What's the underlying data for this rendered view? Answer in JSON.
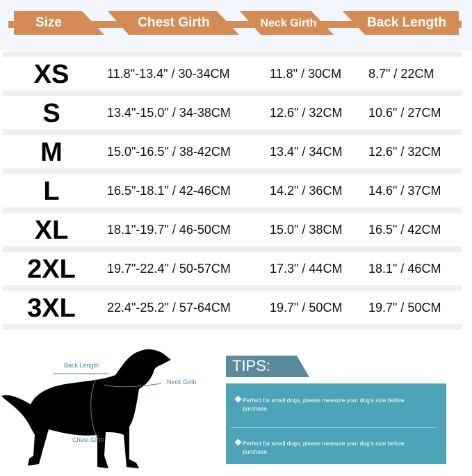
{
  "header": {
    "columns": [
      "Size",
      "Chest Girth",
      "Neck Girth",
      "Back Length"
    ],
    "color": "#d38c55"
  },
  "rows": [
    {
      "size": "XS",
      "chest": "11.8\"-13.4\" / 30-34CM",
      "neck": "11.8\" / 30CM",
      "back": "8.7\" / 22CM"
    },
    {
      "size": "S",
      "chest": "13.4\"-15.0\" / 34-38CM",
      "neck": "12.6\" / 32CM",
      "back": "10.6\" / 27CM"
    },
    {
      "size": "M",
      "chest": "15.0\"-16.5\" / 38-42CM",
      "neck": "13.4\" / 34CM",
      "back": "12.6\" / 32CM"
    },
    {
      "size": "L",
      "chest": "16.5\"-18.1\" / 42-46CM",
      "neck": "14.2\" / 36CM",
      "back": "14.6\" / 37CM"
    },
    {
      "size": "XL",
      "chest": "18.1\"-19.7\" / 46-50CM",
      "neck": "15.0\" / 38CM",
      "back": "16.5\" / 42CM"
    },
    {
      "size": "2XL",
      "chest": "19.7\"-22.4\" / 50-57CM",
      "neck": "17.3\" / 44CM",
      "back": "18.1\" / 46CM"
    },
    {
      "size": "3XL",
      "chest": "22.4\"-25.2\" / 57-64CM",
      "neck": "19.7\" / 50CM",
      "back": "19.7\" / 50CM"
    }
  ],
  "diagram": {
    "back_length": "Back Length",
    "neck_girth": "Neck Girth",
    "chest_girth": "Chest Girth"
  },
  "tips": {
    "title": "TIPS:",
    "items": [
      "Perfect for small dogs, please measure your dog's size before purchase.",
      "Perfect for small dogs, please measure your dog's size before purchase."
    ],
    "header_color": "#5b8a9c",
    "box_color": "#4da4b8"
  }
}
